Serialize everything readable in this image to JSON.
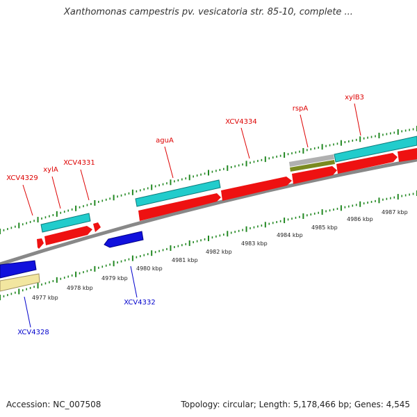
{
  "title": "Xanthomonas campestris pv. vesicatoria str. 85-10, complete ...",
  "footer": {
    "accession": "Accession: NC_007508",
    "topology": "Topology: circular; Length: 5,178,466 bp; Genes: 4,545"
  },
  "colors": {
    "forward_label": "#dd0000",
    "reverse_label": "#0000cc",
    "cds": "#ee1111",
    "gene_forward": "#22cccc",
    "gene_reverse": "#1111dd",
    "pseudogene": "#f2e6a0",
    "rna": "#aaaaaa",
    "misc": "#7a8a20",
    "backbone": "#888888",
    "tick": "#228822"
  },
  "ruler": {
    "ticks": [
      "4977 kbp",
      "4978 kbp",
      "4979 kbp",
      "4980 kbp",
      "4981 kbp",
      "4982 kbp",
      "4983 kbp",
      "4984 kbp",
      "4985 kbp",
      "4986 kbp",
      "4987 kbp"
    ]
  },
  "genes_forward": [
    {
      "name": "XCV4329",
      "type": "gene"
    },
    {
      "name": "xylA",
      "type": "gene"
    },
    {
      "name": "XCV4331",
      "type": "gene"
    },
    {
      "name": "aguA",
      "type": "gene"
    },
    {
      "name": "XCV4334",
      "type": "gene"
    },
    {
      "name": "rspA",
      "type": "gene"
    },
    {
      "name": "xylB3",
      "type": "gene"
    }
  ],
  "genes_reverse": [
    {
      "name": "XCV4332",
      "type": "gene"
    },
    {
      "name": "XCV4328",
      "type": "gene"
    }
  ]
}
